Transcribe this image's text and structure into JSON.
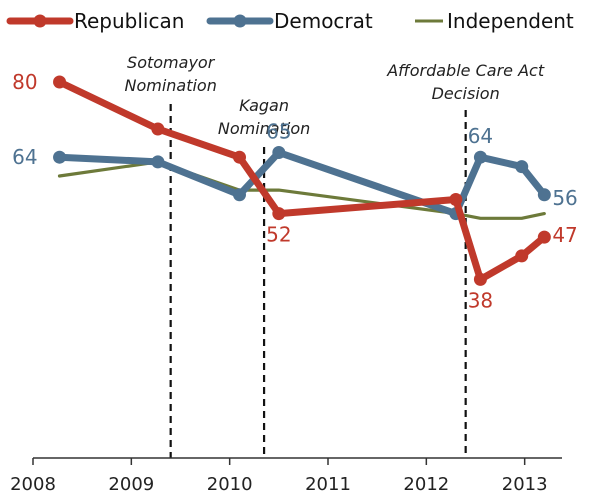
{
  "chart_data": {
    "type": "line",
    "title": "",
    "xlabel": "",
    "ylabel": "",
    "xlim": [
      2008,
      2013.4
    ],
    "ylim": [
      0,
      90
    ],
    "x_ticks": [
      "2008",
      "2009",
      "2010",
      "2011",
      "2012",
      "2013"
    ],
    "legend_position": "top",
    "grid": false,
    "series": [
      {
        "name": "Republican",
        "color": "#c0392b",
        "markers": true,
        "points": [
          {
            "x": 2008.27,
            "y": 80,
            "label": "80"
          },
          {
            "x": 2009.27,
            "y": 70
          },
          {
            "x": 2010.1,
            "y": 64
          },
          {
            "x": 2010.5,
            "y": 52,
            "label": "52"
          },
          {
            "x": 2012.3,
            "y": 55
          },
          {
            "x": 2012.55,
            "y": 38,
            "label": "38"
          },
          {
            "x": 2012.97,
            "y": 43
          },
          {
            "x": 2013.2,
            "y": 47,
            "label": "47"
          }
        ]
      },
      {
        "name": "Democrat",
        "color": "#4e7291",
        "markers": true,
        "points": [
          {
            "x": 2008.27,
            "y": 64,
            "label": "64"
          },
          {
            "x": 2009.27,
            "y": 63
          },
          {
            "x": 2010.1,
            "y": 56
          },
          {
            "x": 2010.5,
            "y": 65,
            "label": "65"
          },
          {
            "x": 2012.3,
            "y": 52
          },
          {
            "x": 2012.55,
            "y": 64,
            "label": "64"
          },
          {
            "x": 2012.97,
            "y": 62
          },
          {
            "x": 2013.2,
            "y": 56,
            "label": "56"
          }
        ]
      },
      {
        "name": "Independent",
        "color": "#6d7a3a",
        "markers": false,
        "points": [
          {
            "x": 2008.27,
            "y": 60
          },
          {
            "x": 2009.27,
            "y": 63
          },
          {
            "x": 2010.1,
            "y": 57
          },
          {
            "x": 2010.5,
            "y": 57
          },
          {
            "x": 2012.3,
            "y": 52
          },
          {
            "x": 2012.55,
            "y": 51
          },
          {
            "x": 2012.97,
            "y": 51
          },
          {
            "x": 2013.2,
            "y": 52
          }
        ]
      }
    ],
    "events": [
      {
        "x": 2009.4,
        "lines": [
          "Sotomayor",
          "Nomination"
        ]
      },
      {
        "x": 2010.35,
        "lines": [
          "Kagan",
          "Nomination"
        ]
      },
      {
        "x": 2012.4,
        "lines": [
          "Affordable Care Act",
          "Decision"
        ]
      }
    ]
  }
}
